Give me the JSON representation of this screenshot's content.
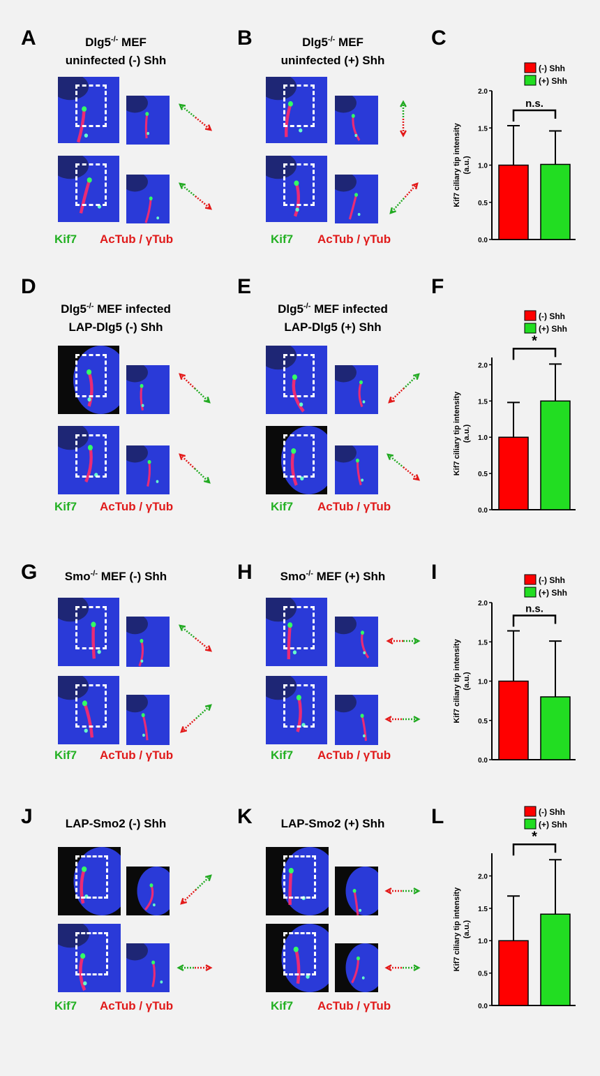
{
  "panels": [
    {
      "letter": "A",
      "title_prefix": "Dlg5",
      "title_sup": "-/-",
      "title_rest": " MEF",
      "title_line2": "uninfected (-) Shh"
    },
    {
      "letter": "B",
      "title_prefix": "Dlg5",
      "title_sup": "-/-",
      "title_rest": " MEF",
      "title_line2": "uninfected (+) Shh"
    },
    {
      "letter": "C"
    },
    {
      "letter": "D",
      "title_prefix": "Dlg5",
      "title_sup": "-/-",
      "title_rest": " MEF infected",
      "title_line2": "LAP-Dlg5 (-) Shh"
    },
    {
      "letter": "E",
      "title_prefix": "Dlg5",
      "title_sup": "-/-",
      "title_rest": " MEF infected",
      "title_line2": "LAP-Dlg5 (+) Shh"
    },
    {
      "letter": "F"
    },
    {
      "letter": "G",
      "title_prefix": "Smo",
      "title_sup": "-/-",
      "title_rest": " MEF (-) Shh",
      "title_line2": ""
    },
    {
      "letter": "H",
      "title_prefix": "Smo",
      "title_sup": "-/-",
      "title_rest": " MEF (+) Shh",
      "title_line2": ""
    },
    {
      "letter": "I"
    },
    {
      "letter": "J",
      "title_prefix": "LAP-Smo2 (-) Shh",
      "title_sup": "",
      "title_rest": "",
      "title_line2": ""
    },
    {
      "letter": "K",
      "title_prefix": "LAP-Smo2 (+) Shh",
      "title_sup": "",
      "title_rest": "",
      "title_line2": ""
    },
    {
      "letter": "L"
    }
  ],
  "channel_labels": {
    "kif7": "Kif7",
    "actub": "AcTub / γTub"
  },
  "colors": {
    "minus_shh": "#ff0000",
    "plus_shh": "#22dd22",
    "kif7_text": "#22b022",
    "actub_text": "#e01a1a",
    "nucleus_blue": "#2a3ad8"
  },
  "chart_data": [
    {
      "type": "bar",
      "panel": "C",
      "categories": [
        "(-) Shh",
        "(+) Shh"
      ],
      "values": [
        1.0,
        1.01
      ],
      "errors": [
        0.53,
        0.45
      ],
      "ylabel": "Kif7 ciliary tip intensity (a.u.)",
      "ylim": [
        0,
        2.0
      ],
      "yticks": [
        "0.0",
        "0.5",
        "1.0",
        "1.5",
        "2.0"
      ],
      "significance": "n.s.",
      "legend": [
        "(-)  Shh",
        "(+) Shh"
      ],
      "legend_position": "top-right"
    },
    {
      "type": "bar",
      "panel": "F",
      "categories": [
        "(-) Shh",
        "(+) Shh"
      ],
      "values": [
        1.0,
        1.5
      ],
      "errors": [
        0.48,
        0.51
      ],
      "ylabel": "Kif7 ciliary tip intensity (a.u.)",
      "ylim": [
        0,
        2.1
      ],
      "yticks": [
        "0.0",
        "0.5",
        "1.0",
        "1.5",
        "2.0"
      ],
      "significance": "*",
      "legend": [
        "(-)  Shh",
        "(+) Shh"
      ],
      "legend_position": "top-right"
    },
    {
      "type": "bar",
      "panel": "I",
      "categories": [
        "(-) Shh",
        "(+) Shh"
      ],
      "values": [
        1.0,
        0.8
      ],
      "errors": [
        0.64,
        0.71
      ],
      "ylabel": "Kif7 ciliary tip intensity (a.u.)",
      "ylim": [
        0,
        2.0
      ],
      "yticks": [
        "0.0",
        "0.5",
        "1.0",
        "1.5",
        "2.0"
      ],
      "significance": "n.s.",
      "legend": [
        "(-)  Shh",
        "(+) Shh"
      ],
      "legend_position": "top-right"
    },
    {
      "type": "bar",
      "panel": "L",
      "categories": [
        "(-) Shh",
        "(+) Shh"
      ],
      "values": [
        1.0,
        1.41
      ],
      "errors": [
        0.69,
        0.84
      ],
      "ylabel": "Kif7 ciliary tip intensity (a.u.)",
      "ylim": [
        0,
        2.35
      ],
      "yticks": [
        "0.0",
        "0.5",
        "1.0",
        "1.5",
        "2.0"
      ],
      "significance": "*",
      "legend": [
        "(-)  Shh",
        "(+) Shh"
      ],
      "legend_position": "top-right"
    }
  ]
}
